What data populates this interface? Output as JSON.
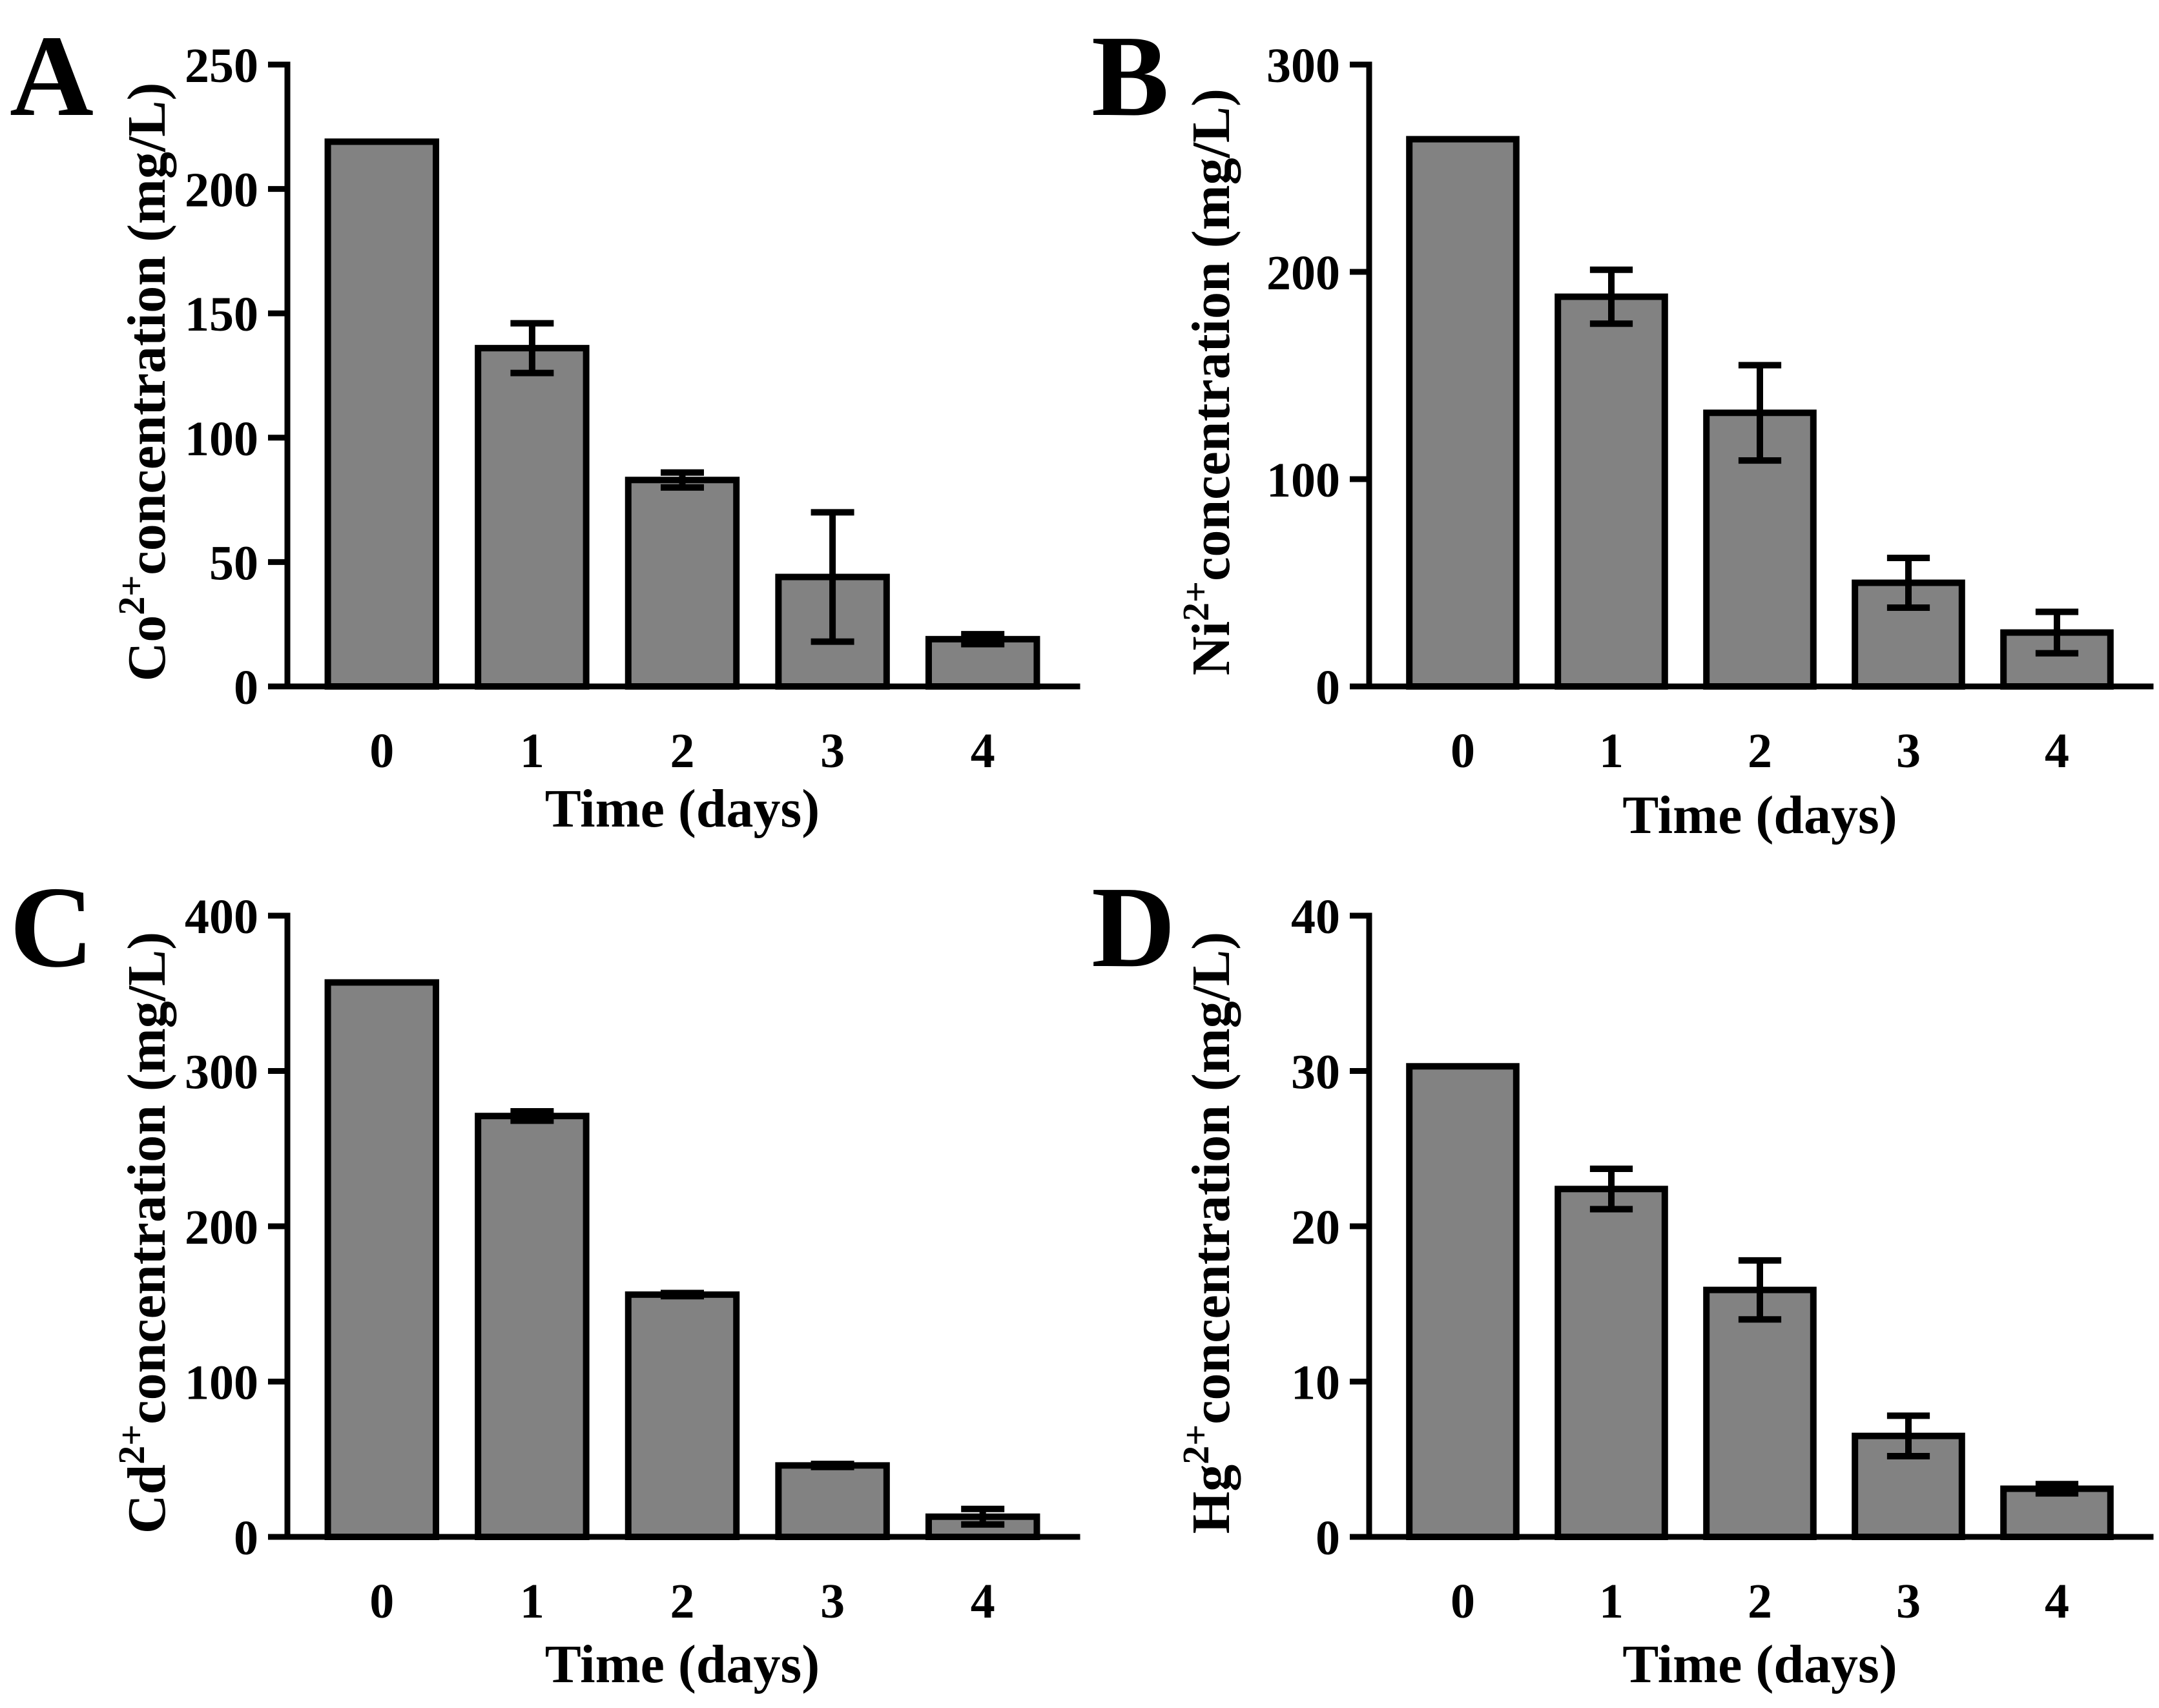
{
  "chart_data": [
    {
      "panel": "A",
      "type": "bar",
      "categories": [
        "0",
        "1",
        "2",
        "3",
        "4"
      ],
      "values": [
        219,
        136,
        83,
        44,
        19
      ],
      "errors": [
        0,
        10,
        3,
        26,
        2
      ],
      "ylabel_ion": "Co",
      "ylabel_charge": "2+",
      "ylabel_rest": "concentration (mg/L)",
      "xlabel": "Time (days)",
      "ylim": [
        0,
        250
      ],
      "yticks": [
        0,
        50,
        100,
        150,
        200,
        250
      ],
      "color": "#828282"
    },
    {
      "panel": "B",
      "type": "bar",
      "categories": [
        "0",
        "1",
        "2",
        "3",
        "4"
      ],
      "values": [
        264,
        188,
        132,
        50,
        26
      ],
      "errors": [
        0,
        13,
        23,
        12,
        10
      ],
      "ylabel_ion": "Ni",
      "ylabel_charge": "2+",
      "ylabel_rest": "concentration (mg/L)",
      "xlabel": "Time (days)",
      "ylim": [
        0,
        300
      ],
      "yticks": [
        0,
        100,
        200,
        300
      ],
      "color": "#828282"
    },
    {
      "panel": "C",
      "type": "bar",
      "categories": [
        "0",
        "1",
        "2",
        "3",
        "4"
      ],
      "values": [
        357,
        271,
        156,
        46,
        13
      ],
      "errors": [
        0,
        3,
        1,
        1,
        5
      ],
      "ylabel_ion": "Cd",
      "ylabel_charge": "2+",
      "ylabel_rest": "concentration (mg/L)",
      "xlabel": "Time (days)",
      "ylim": [
        0,
        400
      ],
      "yticks": [
        0,
        100,
        200,
        300,
        400
      ],
      "color": "#828282"
    },
    {
      "panel": "D",
      "type": "bar",
      "categories": [
        "0",
        "1",
        "2",
        "3",
        "4"
      ],
      "values": [
        30.3,
        22.4,
        15.9,
        6.5,
        3.1
      ],
      "errors": [
        0,
        1.3,
        1.9,
        1.3,
        0.3
      ],
      "ylabel_ion": "Hg",
      "ylabel_charge": "2+",
      "ylabel_rest": "concentration (mg/L)",
      "xlabel": "Time (days)",
      "ylim": [
        0,
        40
      ],
      "yticks": [
        0,
        10,
        20,
        30,
        40
      ],
      "color": "#828282"
    }
  ]
}
